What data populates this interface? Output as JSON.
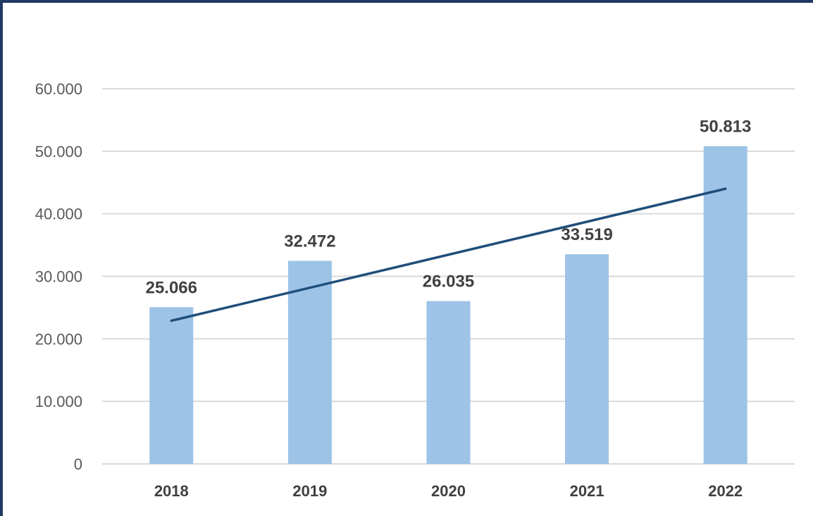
{
  "chart_data": {
    "type": "bar",
    "title": "",
    "xlabel": "",
    "ylabel": "",
    "categories": [
      "2018",
      "2019",
      "2020",
      "2021",
      "2022"
    ],
    "values": [
      25066,
      32472,
      26035,
      33519,
      50813
    ],
    "data_labels": [
      "25.066",
      "32.472",
      "26.035",
      "33.519",
      "50.813"
    ],
    "ylim": [
      0,
      60000
    ],
    "yticks": [
      0,
      10000,
      20000,
      30000,
      40000,
      50000,
      60000
    ],
    "ytick_labels": [
      "0",
      "10.000",
      "20.000",
      "30.000",
      "40.000",
      "50.000",
      "60.000"
    ],
    "grid": true,
    "legend": "none",
    "trendline": {
      "type": "linear",
      "start": 22900,
      "end": 44000
    },
    "colors": {
      "bar": "#9dc3e6",
      "trendline": "#1f4e79",
      "grid": "#d9d9d9",
      "frame": "#1f3b63"
    }
  }
}
